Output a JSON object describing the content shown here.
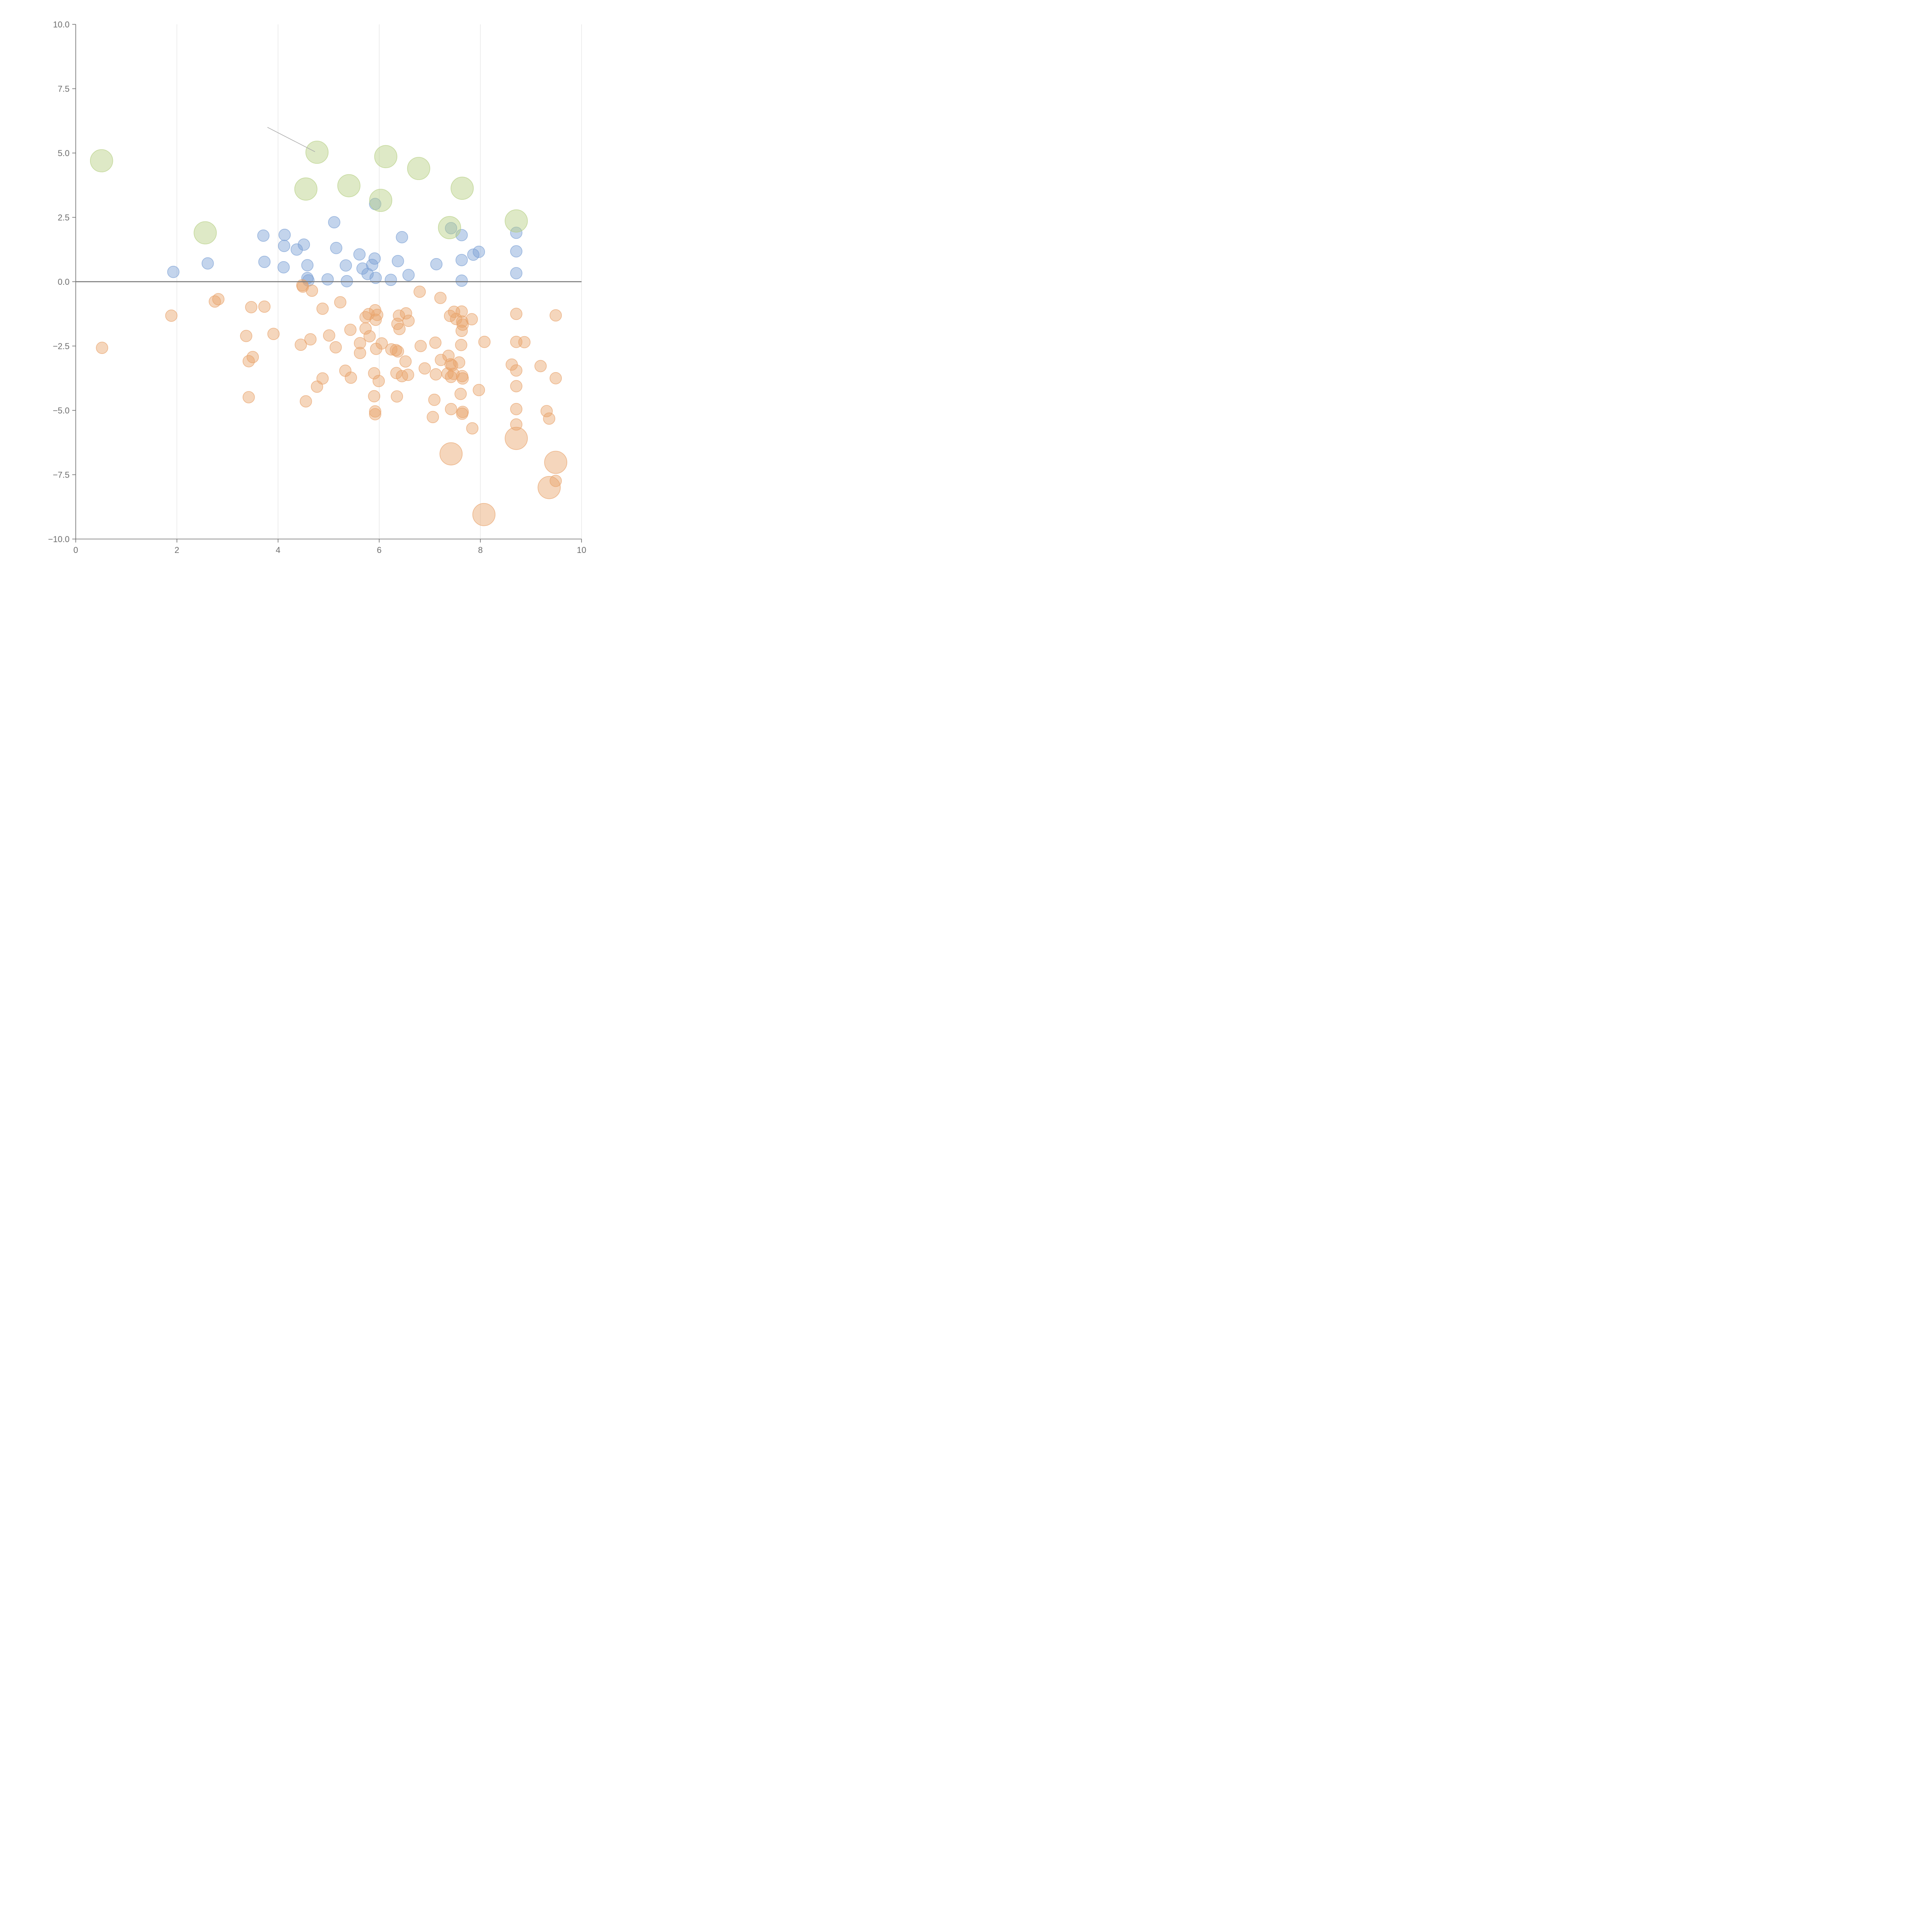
{
  "chart_data": {
    "type": "scatter",
    "title": "",
    "xlabel": "",
    "ylabel": "",
    "xlim": [
      0,
      10
    ],
    "ylim": [
      -10,
      10
    ],
    "x_ticks": [
      0,
      2,
      4,
      6,
      8,
      10
    ],
    "x_tick_labels": [
      "0",
      "2",
      "4",
      "6",
      "8",
      "10"
    ],
    "y_ticks": [
      10,
      7.5,
      5,
      2.5,
      0,
      -2.5,
      -5,
      -7.5,
      -10
    ],
    "y_tick_labels": [
      "10.0",
      "7.5",
      "5.0",
      "2.5",
      "0.0",
      "−2.5",
      "−5.0",
      "−7.5",
      "−10.0"
    ],
    "vertical_grid": true,
    "zero_line": true,
    "series": [
      {
        "name": "positive-small",
        "color": "#7b9fd4",
        "size": "small",
        "points": [
          [
            1.93,
            0.38
          ],
          [
            2.61,
            0.71
          ],
          [
            3.71,
            1.79
          ],
          [
            3.73,
            0.77
          ],
          [
            4.13,
            1.82
          ],
          [
            4.12,
            1.39
          ],
          [
            4.11,
            0.56
          ],
          [
            4.37,
            1.25
          ],
          [
            4.51,
            1.44
          ],
          [
            4.58,
            0.64
          ],
          [
            4.58,
            0.14
          ],
          [
            4.6,
            0.05
          ],
          [
            4.98,
            0.09
          ],
          [
            5.11,
            2.31
          ],
          [
            5.15,
            1.31
          ],
          [
            5.34,
            0.63
          ],
          [
            5.36,
            0.02
          ],
          [
            5.61,
            1.06
          ],
          [
            5.67,
            0.51
          ],
          [
            5.77,
            0.3
          ],
          [
            5.86,
            0.65
          ],
          [
            5.91,
            0.9
          ],
          [
            5.92,
            3.02
          ],
          [
            5.93,
            0.15
          ],
          [
            6.23,
            0.07
          ],
          [
            6.45,
            1.73
          ],
          [
            6.37,
            0.8
          ],
          [
            6.58,
            0.26
          ],
          [
            7.13,
            0.68
          ],
          [
            7.42,
            2.08
          ],
          [
            7.63,
            1.81
          ],
          [
            7.63,
            0.84
          ],
          [
            7.63,
            0.04
          ],
          [
            7.86,
            1.05
          ],
          [
            7.97,
            1.16
          ],
          [
            8.71,
            1.9
          ],
          [
            8.71,
            1.18
          ],
          [
            8.71,
            0.33
          ]
        ]
      },
      {
        "name": "positive-large",
        "color": "#b5cf81",
        "size": "large",
        "points": [
          [
            0.51,
            4.7
          ],
          [
            2.56,
            1.9
          ],
          [
            4.55,
            3.6
          ],
          [
            4.77,
            5.03
          ],
          [
            5.4,
            3.73
          ],
          [
            6.03,
            3.16
          ],
          [
            6.13,
            4.86
          ],
          [
            6.78,
            4.4
          ],
          [
            7.39,
            2.1
          ],
          [
            7.64,
            3.63
          ],
          [
            8.71,
            2.36
          ]
        ]
      },
      {
        "name": "negative-small",
        "color": "#e8a36b",
        "size": "small",
        "points": [
          [
            0.52,
            -2.57
          ],
          [
            1.89,
            -1.32
          ],
          [
            2.75,
            -0.77
          ],
          [
            2.82,
            -0.68
          ],
          [
            3.47,
            -0.99
          ],
          [
            3.73,
            -0.97
          ],
          [
            3.37,
            -2.11
          ],
          [
            3.91,
            -2.03
          ],
          [
            3.42,
            -3.09
          ],
          [
            3.5,
            -2.93
          ],
          [
            3.42,
            -4.49
          ],
          [
            4.48,
            -0.14
          ],
          [
            4.49,
            -0.19
          ],
          [
            4.67,
            -0.35
          ],
          [
            4.88,
            -1.05
          ],
          [
            5.23,
            -0.8
          ],
          [
            4.45,
            -2.45
          ],
          [
            4.64,
            -2.24
          ],
          [
            5.01,
            -2.09
          ],
          [
            5.14,
            -2.55
          ],
          [
            5.43,
            -1.87
          ],
          [
            4.88,
            -3.76
          ],
          [
            4.77,
            -4.08
          ],
          [
            4.55,
            -4.65
          ],
          [
            5.33,
            -3.46
          ],
          [
            5.44,
            -3.73
          ],
          [
            5.73,
            -1.38
          ],
          [
            5.79,
            -1.26
          ],
          [
            5.73,
            -1.82
          ],
          [
            5.81,
            -2.12
          ],
          [
            5.92,
            -1.11
          ],
          [
            5.96,
            -1.29
          ],
          [
            5.93,
            -1.48
          ],
          [
            5.62,
            -2.39
          ],
          [
            5.62,
            -2.77
          ],
          [
            6.05,
            -2.4
          ],
          [
            5.94,
            -2.61
          ],
          [
            5.9,
            -3.56
          ],
          [
            5.99,
            -3.86
          ],
          [
            5.9,
            -4.45
          ],
          [
            5.92,
            -5.04
          ],
          [
            5.92,
            -5.15
          ],
          [
            6.39,
            -1.32
          ],
          [
            6.53,
            -1.23
          ],
          [
            6.58,
            -1.52
          ],
          [
            6.36,
            -1.64
          ],
          [
            6.4,
            -1.84
          ],
          [
            6.24,
            -2.63
          ],
          [
            6.33,
            -2.66
          ],
          [
            6.37,
            -2.71
          ],
          [
            6.52,
            -3.1
          ],
          [
            6.34,
            -3.55
          ],
          [
            6.45,
            -3.67
          ],
          [
            6.57,
            -3.62
          ],
          [
            6.35,
            -4.46
          ],
          [
            6.8,
            -0.39
          ],
          [
            6.82,
            -2.5
          ],
          [
            6.9,
            -3.37
          ],
          [
            7.11,
            -2.37
          ],
          [
            7.21,
            -0.63
          ],
          [
            7.22,
            -3.04
          ],
          [
            7.12,
            -3.6
          ],
          [
            7.09,
            -4.59
          ],
          [
            7.06,
            -5.26
          ],
          [
            7.37,
            -2.88
          ],
          [
            7.41,
            -3.21
          ],
          [
            7.44,
            -3.25
          ],
          [
            7.35,
            -3.57
          ],
          [
            7.47,
            -3.58
          ],
          [
            7.42,
            -3.7
          ],
          [
            7.42,
            -4.95
          ],
          [
            7.4,
            -1.33
          ],
          [
            7.48,
            -1.17
          ],
          [
            7.52,
            -1.45
          ],
          [
            7.58,
            -3.14
          ],
          [
            7.63,
            -1.16
          ],
          [
            7.64,
            -1.55
          ],
          [
            7.65,
            -1.67
          ],
          [
            7.63,
            -1.91
          ],
          [
            7.62,
            -2.46
          ],
          [
            7.64,
            -3.67
          ],
          [
            7.65,
            -3.76
          ],
          [
            7.61,
            -4.36
          ],
          [
            7.65,
            -5.06
          ],
          [
            7.64,
            -5.13
          ],
          [
            7.83,
            -1.46
          ],
          [
            7.84,
            -5.7
          ],
          [
            7.97,
            -4.21
          ],
          [
            8.08,
            -2.34
          ],
          [
            8.62,
            -3.22
          ],
          [
            8.71,
            -1.25
          ],
          [
            8.71,
            -2.34
          ],
          [
            8.71,
            -3.45
          ],
          [
            8.71,
            -4.06
          ],
          [
            8.71,
            -4.95
          ],
          [
            8.71,
            -5.55
          ],
          [
            8.87,
            -2.35
          ],
          [
            9.19,
            -3.28
          ],
          [
            9.31,
            -5.03
          ],
          [
            9.36,
            -5.32
          ],
          [
            9.49,
            -1.31
          ],
          [
            9.49,
            -3.75
          ],
          [
            9.49,
            -7.74
          ]
        ]
      },
      {
        "name": "negative-large",
        "color": "#e8a36b",
        "size": "large",
        "points": [
          [
            7.42,
            -6.69
          ],
          [
            8.71,
            -6.09
          ],
          [
            8.07,
            -9.05
          ],
          [
            9.49,
            -7.02
          ],
          [
            9.36,
            -8.0
          ]
        ]
      }
    ],
    "annotation_leaders": [
      {
        "from": [
          3.79,
          6.0
        ],
        "to": [
          4.73,
          5.05
        ],
        "color": "#aaaaaa"
      }
    ]
  }
}
